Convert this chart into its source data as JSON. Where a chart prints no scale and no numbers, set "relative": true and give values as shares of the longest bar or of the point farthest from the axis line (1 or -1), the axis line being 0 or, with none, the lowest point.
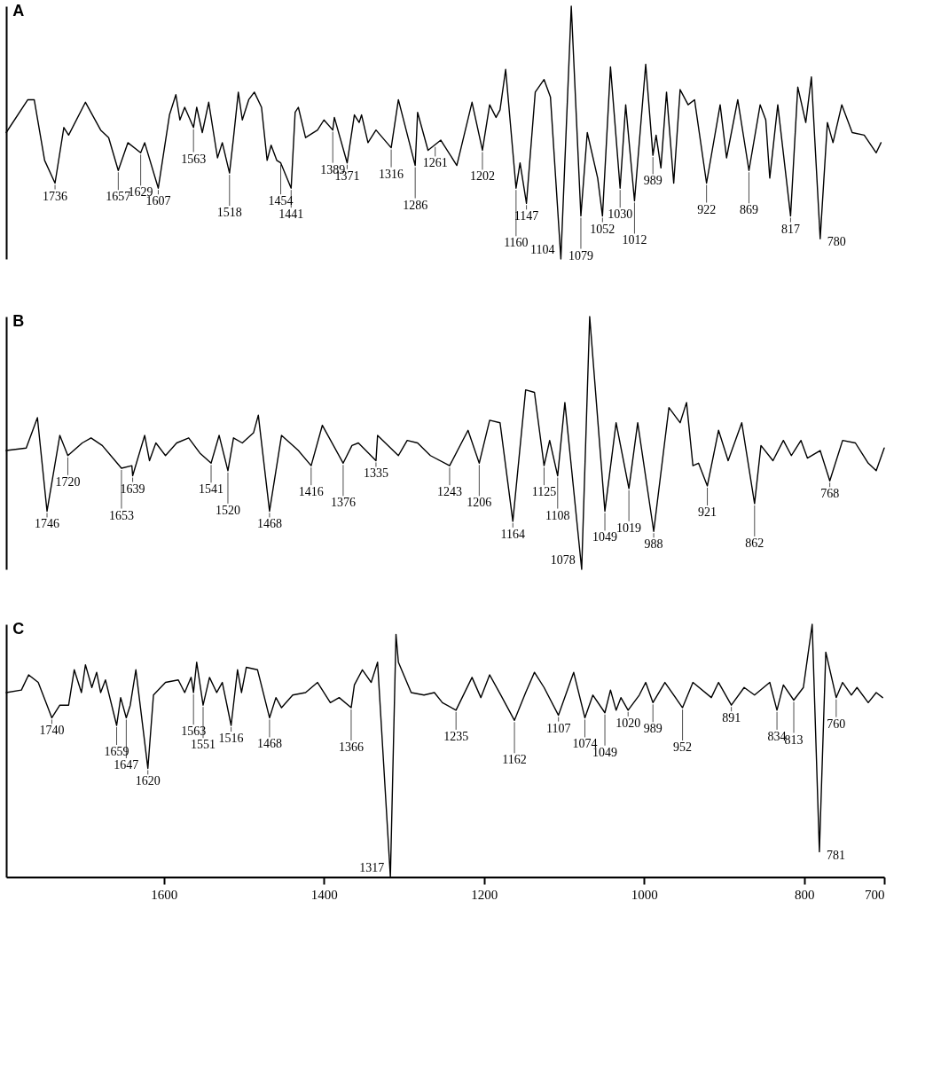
{
  "chart_data": [
    {
      "type": "line",
      "title": "A",
      "relative": true,
      "xlim": [
        1797,
        700
      ],
      "tick_labels": false,
      "x": [
        1797,
        1770,
        1762,
        1749,
        1736,
        1725,
        1719,
        1698,
        1679,
        1669,
        1657,
        1645,
        1629,
        1624,
        1607,
        1593,
        1585,
        1580,
        1574,
        1563,
        1559,
        1552,
        1544,
        1533,
        1527,
        1518,
        1513,
        1507,
        1502,
        1494,
        1487,
        1478,
        1471,
        1466,
        1459,
        1454,
        1441,
        1436,
        1432,
        1423,
        1408,
        1400,
        1389,
        1387,
        1371,
        1362,
        1356,
        1353,
        1345,
        1335,
        1316,
        1307,
        1286,
        1283,
        1270,
        1254,
        1234,
        1215,
        1202,
        1193,
        1185,
        1180,
        1173,
        1160,
        1155,
        1147,
        1136,
        1125,
        1117,
        1104,
        1091,
        1079,
        1071,
        1058,
        1052,
        1042,
        1030,
        1023,
        1012,
        998,
        989,
        985,
        979,
        972,
        963,
        955,
        945,
        937,
        922,
        905,
        897,
        883,
        869,
        855,
        848,
        843,
        833,
        817,
        808,
        798,
        791,
        780,
        771,
        764,
        753,
        740,
        725,
        710,
        704
      ],
      "series": [
        {
          "color": "#000000",
          "values": [
            0.5,
            0.63,
            0.63,
            0.39,
            0.3,
            0.52,
            0.49,
            0.62,
            0.51,
            0.48,
            0.35,
            0.46,
            0.42,
            0.46,
            0.28,
            0.57,
            0.65,
            0.55,
            0.6,
            0.52,
            0.6,
            0.5,
            0.62,
            0.4,
            0.46,
            0.34,
            0.48,
            0.66,
            0.55,
            0.63,
            0.66,
            0.6,
            0.39,
            0.45,
            0.39,
            0.38,
            0.28,
            0.58,
            0.6,
            0.48,
            0.51,
            0.55,
            0.51,
            0.56,
            0.38,
            0.57,
            0.54,
            0.57,
            0.46,
            0.51,
            0.44,
            0.63,
            0.37,
            0.58,
            0.43,
            0.47,
            0.37,
            0.62,
            0.43,
            0.61,
            0.56,
            0.59,
            0.75,
            0.28,
            0.38,
            0.22,
            0.66,
            0.71,
            0.64,
            0.0,
            1.0,
            0.17,
            0.5,
            0.32,
            0.17,
            0.76,
            0.28,
            0.61,
            0.23,
            0.77,
            0.41,
            0.49,
            0.36,
            0.66,
            0.3,
            0.67,
            0.61,
            0.63,
            0.3,
            0.61,
            0.4,
            0.63,
            0.35,
            0.61,
            0.55,
            0.32,
            0.61,
            0.17,
            0.68,
            0.54,
            0.72,
            0.08,
            0.54,
            0.46,
            0.61,
            0.5,
            0.49,
            0.42,
            0.46
          ]
        }
      ],
      "annotations": [
        {
          "text": "1736",
          "x": 1736,
          "y": 0.3
        },
        {
          "text": "1657",
          "x": 1657,
          "y": 0.35
        },
        {
          "text": "1629",
          "x": 1629,
          "y": 0.42
        },
        {
          "text": "1607",
          "x": 1607,
          "y": 0.28
        },
        {
          "text": "1563",
          "x": 1563,
          "y": 0.52
        },
        {
          "text": "1518",
          "x": 1518,
          "y": 0.34
        },
        {
          "text": "1454",
          "x": 1454,
          "y": 0.38
        },
        {
          "text": "1441",
          "x": 1441,
          "y": 0.28
        },
        {
          "text": "1389",
          "x": 1389,
          "y": 0.51
        },
        {
          "text": "1371",
          "x": 1371,
          "y": 0.38
        },
        {
          "text": "1316",
          "x": 1316,
          "y": 0.44
        },
        {
          "text": "1286",
          "x": 1286,
          "y": 0.37
        },
        {
          "text": "1261",
          "x": 1261,
          "y": 0.45
        },
        {
          "text": "1202",
          "x": 1202,
          "y": 0.43
        },
        {
          "text": "1160",
          "x": 1160,
          "y": 0.28
        },
        {
          "text": "1147",
          "x": 1147,
          "y": 0.22
        },
        {
          "text": "1104",
          "x": 1104,
          "y": 0.0
        },
        {
          "text": "1079",
          "x": 1079,
          "y": 0.17
        },
        {
          "text": "1052",
          "x": 1052,
          "y": 0.17
        },
        {
          "text": "1030",
          "x": 1030,
          "y": 0.28
        },
        {
          "text": "1012",
          "x": 1012,
          "y": 0.23
        },
        {
          "text": "989",
          "x": 989,
          "y": 0.41
        },
        {
          "text": "922",
          "x": 922,
          "y": 0.3
        },
        {
          "text": "869",
          "x": 869,
          "y": 0.35
        },
        {
          "text": "817",
          "x": 817,
          "y": 0.17
        },
        {
          "text": "780",
          "x": 780,
          "y": 0.08
        }
      ]
    },
    {
      "type": "line",
      "title": "B",
      "relative": true,
      "xlim": [
        1797,
        700
      ],
      "tick_labels": false,
      "x": [
        1797,
        1772,
        1758,
        1746,
        1730,
        1720,
        1702,
        1691,
        1677,
        1653,
        1640,
        1639,
        1624,
        1618,
        1610,
        1598,
        1584,
        1569,
        1555,
        1541,
        1531,
        1520,
        1513,
        1502,
        1488,
        1482,
        1468,
        1453,
        1439,
        1432,
        1416,
        1402,
        1376,
        1365,
        1357,
        1335,
        1333,
        1307,
        1296,
        1283,
        1267,
        1243,
        1220,
        1206,
        1193,
        1180,
        1164,
        1148,
        1137,
        1125,
        1118,
        1108,
        1099,
        1078,
        1068,
        1049,
        1035,
        1019,
        1008,
        988,
        969,
        955,
        947,
        939,
        932,
        921,
        907,
        895,
        878,
        862,
        854,
        839,
        826,
        816,
        804,
        796,
        780,
        768,
        752,
        736,
        720,
        710,
        700
      ],
      "series": [
        {
          "color": "#000000",
          "values": [
            0.47,
            0.48,
            0.6,
            0.23,
            0.53,
            0.45,
            0.5,
            0.52,
            0.49,
            0.4,
            0.41,
            0.37,
            0.53,
            0.43,
            0.5,
            0.45,
            0.5,
            0.52,
            0.46,
            0.42,
            0.53,
            0.39,
            0.52,
            0.5,
            0.54,
            0.61,
            0.23,
            0.53,
            0.49,
            0.47,
            0.41,
            0.57,
            0.42,
            0.49,
            0.5,
            0.43,
            0.53,
            0.45,
            0.51,
            0.5,
            0.45,
            0.41,
            0.55,
            0.42,
            0.59,
            0.58,
            0.19,
            0.71,
            0.7,
            0.41,
            0.51,
            0.37,
            0.66,
            0.0,
            1.0,
            0.23,
            0.58,
            0.32,
            0.58,
            0.15,
            0.64,
            0.58,
            0.66,
            0.41,
            0.42,
            0.33,
            0.55,
            0.43,
            0.58,
            0.26,
            0.49,
            0.43,
            0.51,
            0.45,
            0.51,
            0.44,
            0.47,
            0.35,
            0.51,
            0.5,
            0.42,
            0.39,
            0.48
          ]
        }
      ],
      "annotations": [
        {
          "text": "1746",
          "x": 1746,
          "y": 0.23
        },
        {
          "text": "1720",
          "x": 1720,
          "y": 0.45
        },
        {
          "text": "1653",
          "x": 1653,
          "y": 0.4
        },
        {
          "text": "1639",
          "x": 1639,
          "y": 0.37
        },
        {
          "text": "1541",
          "x": 1541,
          "y": 0.42
        },
        {
          "text": "1520",
          "x": 1520,
          "y": 0.39
        },
        {
          "text": "1468",
          "x": 1468,
          "y": 0.23
        },
        {
          "text": "1416",
          "x": 1416,
          "y": 0.41
        },
        {
          "text": "1376",
          "x": 1376,
          "y": 0.42
        },
        {
          "text": "1335",
          "x": 1335,
          "y": 0.43
        },
        {
          "text": "1243",
          "x": 1243,
          "y": 0.41
        },
        {
          "text": "1206",
          "x": 1206,
          "y": 0.42
        },
        {
          "text": "1164",
          "x": 1164,
          "y": 0.19
        },
        {
          "text": "1125",
          "x": 1125,
          "y": 0.41
        },
        {
          "text": "1108",
          "x": 1108,
          "y": 0.37
        },
        {
          "text": "1078",
          "x": 1078,
          "y": 0.0
        },
        {
          "text": "1049",
          "x": 1049,
          "y": 0.23
        },
        {
          "text": "1019",
          "x": 1019,
          "y": 0.32
        },
        {
          "text": "988",
          "x": 988,
          "y": 0.15
        },
        {
          "text": "921",
          "x": 921,
          "y": 0.33
        },
        {
          "text": "862",
          "x": 862,
          "y": 0.26
        },
        {
          "text": "768",
          "x": 768,
          "y": 0.35
        }
      ]
    },
    {
      "type": "line",
      "title": "C",
      "relative": true,
      "xlim": [
        1797,
        700
      ],
      "xticks": [
        {
          "value": 1600,
          "label": "1600"
        },
        {
          "value": 1400,
          "label": "1400"
        },
        {
          "value": 1200,
          "label": "1200"
        },
        {
          "value": 1000,
          "label": "1000"
        },
        800,
        700
      ],
      "tick_labels": "x",
      "x": [
        1797,
        1778,
        1769,
        1757,
        1746,
        1740,
        1730,
        1719,
        1712,
        1703,
        1698,
        1690,
        1684,
        1679,
        1673,
        1659,
        1654,
        1647,
        1642,
        1635,
        1620,
        1613,
        1598,
        1582,
        1574,
        1566,
        1563,
        1559,
        1551,
        1543,
        1534,
        1527,
        1516,
        1508,
        1503,
        1497,
        1483,
        1468,
        1460,
        1453,
        1439,
        1423,
        1408,
        1392,
        1381,
        1366,
        1362,
        1352,
        1341,
        1333,
        1317,
        1310,
        1307,
        1291,
        1275,
        1262,
        1252,
        1235,
        1215,
        1204,
        1193,
        1179,
        1162,
        1148,
        1137,
        1125,
        1107,
        1088,
        1074,
        1064,
        1049,
        1042,
        1035,
        1029,
        1020,
        1006,
        998,
        989,
        974,
        952,
        939,
        916,
        907,
        891,
        875,
        862,
        843,
        834,
        826,
        813,
        801,
        790,
        781,
        773,
        760,
        752,
        741,
        734,
        720,
        710,
        702
      ],
      "series": [
        {
          "color": "#000000",
          "values": [
            0.73,
            0.74,
            0.8,
            0.77,
            0.68,
            0.63,
            0.68,
            0.68,
            0.82,
            0.73,
            0.84,
            0.75,
            0.81,
            0.73,
            0.78,
            0.6,
            0.71,
            0.63,
            0.68,
            0.82,
            0.43,
            0.72,
            0.77,
            0.78,
            0.73,
            0.79,
            0.73,
            0.85,
            0.68,
            0.79,
            0.73,
            0.77,
            0.6,
            0.82,
            0.73,
            0.83,
            0.82,
            0.63,
            0.71,
            0.67,
            0.72,
            0.73,
            0.77,
            0.69,
            0.71,
            0.67,
            0.76,
            0.82,
            0.77,
            0.85,
            0.0,
            0.96,
            0.85,
            0.73,
            0.72,
            0.73,
            0.69,
            0.66,
            0.79,
            0.71,
            0.8,
            0.72,
            0.62,
            0.73,
            0.81,
            0.75,
            0.64,
            0.81,
            0.63,
            0.72,
            0.65,
            0.74,
            0.66,
            0.71,
            0.66,
            0.72,
            0.77,
            0.69,
            0.77,
            0.67,
            0.77,
            0.71,
            0.77,
            0.68,
            0.75,
            0.72,
            0.77,
            0.66,
            0.76,
            0.7,
            0.75,
            1.0,
            0.1,
            0.89,
            0.71,
            0.77,
            0.72,
            0.75,
            0.69,
            0.73,
            0.71
          ]
        }
      ],
      "annotations": [
        {
          "text": "1740",
          "x": 1740,
          "y": 0.63
        },
        {
          "text": "1659",
          "x": 1659,
          "y": 0.6
        },
        {
          "text": "1647",
          "x": 1647,
          "y": 0.63
        },
        {
          "text": "1620",
          "x": 1620,
          "y": 0.43
        },
        {
          "text": "1563",
          "x": 1563,
          "y": 0.73
        },
        {
          "text": "1551",
          "x": 1551,
          "y": 0.68
        },
        {
          "text": "1516",
          "x": 1516,
          "y": 0.6
        },
        {
          "text": "1468",
          "x": 1468,
          "y": 0.63
        },
        {
          "text": "1366",
          "x": 1366,
          "y": 0.67
        },
        {
          "text": "1317",
          "x": 1317,
          "y": 0.0
        },
        {
          "text": "1235",
          "x": 1235,
          "y": 0.66
        },
        {
          "text": "1162",
          "x": 1162,
          "y": 0.62
        },
        {
          "text": "1107",
          "x": 1107,
          "y": 0.64
        },
        {
          "text": "1074",
          "x": 1074,
          "y": 0.63
        },
        {
          "text": "1049",
          "x": 1049,
          "y": 0.65
        },
        {
          "text": "1020",
          "x": 1020,
          "y": 0.66
        },
        {
          "text": "989",
          "x": 989,
          "y": 0.69
        },
        {
          "text": "952",
          "x": 952,
          "y": 0.67
        },
        {
          "text": "891",
          "x": 891,
          "y": 0.68
        },
        {
          "text": "834",
          "x": 834,
          "y": 0.66
        },
        {
          "text": "813",
          "x": 813,
          "y": 0.7
        },
        {
          "text": "781",
          "x": 781,
          "y": 0.1
        },
        {
          "text": "760",
          "x": 760,
          "y": 0.71
        }
      ]
    }
  ]
}
